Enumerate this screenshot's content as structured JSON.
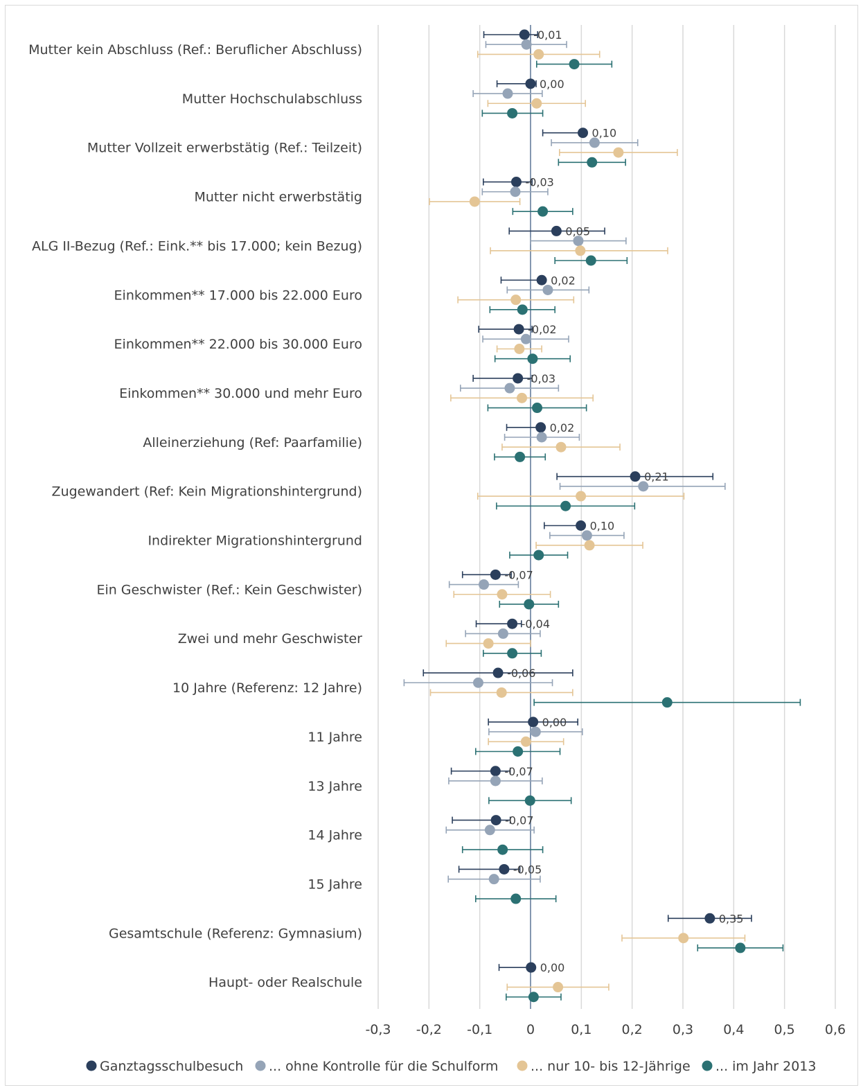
{
  "chart_data": {
    "type": "scatter",
    "orientation": "horizontal-forest-plot",
    "xlim": [
      -0.3,
      0.6
    ],
    "xticks": [
      -0.3,
      -0.2,
      -0.1,
      0,
      0.1,
      0.2,
      0.3,
      0.4,
      0.5,
      0.6
    ],
    "xtick_labels": [
      "-0,3",
      "-0,2",
      "-0,1",
      "0",
      "0,1",
      "0,2",
      "0,3",
      "0,4",
      "0,5",
      "0,6"
    ],
    "grid": "vertical",
    "legend_position": "bottom",
    "categories": [
      "Mutter kein Abschluss  (Ref.: Beruflicher Abschluss)",
      "Mutter Hochschulabschluss ",
      "Mutter Vollzeit erwerbstätig  (Ref.: Teilzeit)",
      "Mutter nicht erwerbstätig",
      "ALG II-Bezug (Ref.: Eink.** bis 17.000; kein Bezug)",
      "Einkommen** 17.000 bis 22.000 Euro",
      "Einkommen** 22.000 bis 30.000 Euro",
      "Einkommen**  30.000 und mehr Euro",
      "Alleinerziehung (Ref: Paarfamilie)",
      "Zugewandert (Ref: Kein Migrationshintergrund)",
      "Indirekter Migrationshintergrund",
      "Ein Geschwister (Ref.: Kein Geschwister)",
      "Zwei und mehr Geschwister ",
      "10 Jahre (Referenz: 12 Jahre)",
      "11 Jahre",
      "13 Jahre",
      "14 Jahre",
      "15 Jahre",
      "Gesamtschule (Referenz: Gymnasium)",
      "Haupt- oder Realschule "
    ],
    "data_labels": [
      "-0,01",
      "0,00",
      "0,10",
      "-0,03",
      "0,05",
      "0,02",
      "-0,02",
      "-0,03",
      "0,02",
      "0,21",
      "0,10",
      "-0,07",
      "-0,04",
      "-0,06",
      "0,00",
      "-0,07",
      "-0,07",
      "-0,05",
      "0,35",
      "0,00"
    ],
    "series": [
      {
        "name": "Ganztagsschulbesuch",
        "color": "#2b3f5c",
        "values": [
          -0.012,
          0.0,
          0.103,
          -0.028,
          0.051,
          0.022,
          -0.023,
          -0.025,
          0.02,
          0.206,
          0.099,
          -0.069,
          -0.036,
          -0.064,
          0.005,
          -0.069,
          -0.068,
          -0.052,
          0.353,
          0.001
        ],
        "lower": [
          -0.092,
          -0.066,
          0.024,
          -0.093,
          -0.042,
          -0.058,
          -0.102,
          -0.113,
          -0.047,
          0.052,
          0.027,
          -0.134,
          -0.107,
          -0.211,
          -0.083,
          -0.156,
          -0.154,
          -0.141,
          0.271,
          -0.062
        ],
        "upper": [
          0.014,
          0.011,
          0.103,
          0.003,
          0.146,
          0.022,
          0.003,
          0.003,
          0.02,
          0.359,
          0.099,
          -0.038,
          -0.018,
          0.083,
          0.093,
          -0.04,
          -0.04,
          -0.021,
          0.435,
          0.001
        ]
      },
      {
        "name": "... ohne Kontrolle für die Schulform",
        "color": "#95a4b7",
        "values": [
          -0.008,
          -0.045,
          0.126,
          -0.03,
          0.094,
          0.034,
          -0.009,
          -0.041,
          0.022,
          0.222,
          0.111,
          -0.092,
          -0.054,
          -0.103,
          0.01,
          -0.069,
          -0.08,
          -0.072
        ],
        "lower": [
          -0.088,
          -0.113,
          0.041,
          -0.095,
          0.0,
          -0.046,
          -0.094,
          -0.138,
          -0.051,
          0.058,
          0.038,
          -0.16,
          -0.128,
          -0.249,
          -0.082,
          -0.161,
          -0.166,
          -0.162
        ],
        "upper": [
          0.071,
          0.023,
          0.211,
          0.034,
          0.188,
          0.115,
          0.075,
          0.055,
          0.096,
          0.383,
          0.184,
          -0.024,
          0.019,
          0.043,
          0.102,
          0.023,
          0.007,
          0.019
        ]
      },
      {
        "name": "... nur 10- bis 12-Jährige",
        "color": "#e4c595",
        "values": [
          0.016,
          0.012,
          0.173,
          -0.11,
          0.098,
          -0.029,
          -0.022,
          -0.017,
          0.06,
          0.099,
          0.116,
          -0.056,
          -0.083,
          -0.057,
          -0.009,
          0.301,
          0.054
        ],
        "lower": [
          -0.104,
          -0.084,
          0.057,
          -0.199,
          -0.079,
          -0.143,
          -0.066,
          -0.157,
          -0.056,
          -0.104,
          0.011,
          -0.151,
          -0.166,
          -0.197,
          -0.083,
          0.18,
          -0.046
        ],
        "upper": [
          0.136,
          0.108,
          0.289,
          -0.021,
          0.27,
          0.085,
          0.022,
          0.123,
          0.176,
          0.302,
          0.221,
          0.039,
          0.0,
          0.083,
          0.065,
          0.422,
          0.154
        ],
        "categories_present": [
          0,
          1,
          2,
          3,
          4,
          5,
          6,
          7,
          8,
          9,
          10,
          11,
          12,
          13,
          14,
          18,
          19
        ]
      },
      {
        "name": "... im Jahr 2013",
        "color": "#2b7173",
        "values": [
          0.086,
          -0.036,
          0.121,
          0.024,
          0.119,
          -0.016,
          0.004,
          0.013,
          -0.021,
          0.069,
          0.016,
          -0.003,
          -0.036,
          0.269,
          -0.025,
          -0.001,
          -0.055,
          -0.029,
          0.413,
          0.006
        ],
        "lower": [
          0.012,
          -0.095,
          0.055,
          -0.035,
          0.048,
          -0.08,
          -0.07,
          -0.084,
          -0.071,
          -0.067,
          -0.041,
          -0.061,
          -0.093,
          0.007,
          -0.108,
          -0.082,
          -0.134,
          -0.108,
          0.329,
          -0.048
        ],
        "upper": [
          0.16,
          0.024,
          0.187,
          0.083,
          0.19,
          0.048,
          0.078,
          0.11,
          0.029,
          0.205,
          0.073,
          0.055,
          0.021,
          0.531,
          0.058,
          0.08,
          0.024,
          0.05,
          0.497,
          0.06
        ]
      }
    ]
  }
}
